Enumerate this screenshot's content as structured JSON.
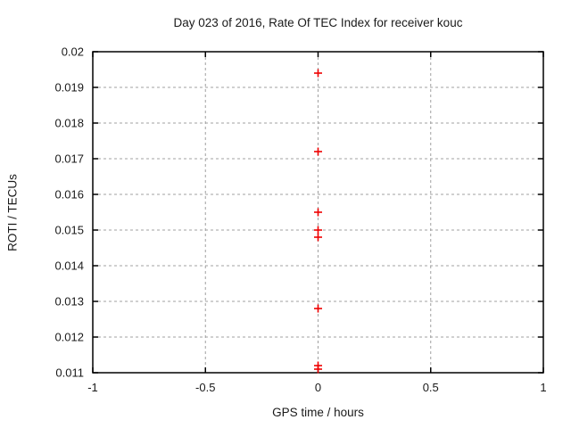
{
  "chart_data": {
    "type": "scatter",
    "title": "Day 023 of 2016, Rate Of TEC Index for receiver kouc",
    "xlabel": "GPS time / hours",
    "ylabel": "ROTI / TECUs",
    "xlim": [
      -1,
      1
    ],
    "ylim": [
      0.011,
      0.02
    ],
    "grid": true,
    "legend": "none",
    "x_ticks": [
      {
        "value": -1,
        "label": "-1"
      },
      {
        "value": -0.5,
        "label": "-0.5"
      },
      {
        "value": 0,
        "label": "0"
      },
      {
        "value": 0.5,
        "label": "0.5"
      },
      {
        "value": 1,
        "label": "1"
      }
    ],
    "y_ticks": [
      {
        "value": 0.011,
        "label": "0.011"
      },
      {
        "value": 0.012,
        "label": "0.012"
      },
      {
        "value": 0.013,
        "label": "0.013"
      },
      {
        "value": 0.014,
        "label": "0.014"
      },
      {
        "value": 0.015,
        "label": "0.015"
      },
      {
        "value": 0.016,
        "label": "0.016"
      },
      {
        "value": 0.017,
        "label": "0.017"
      },
      {
        "value": 0.018,
        "label": "0.018"
      },
      {
        "value": 0.019,
        "label": "0.019"
      },
      {
        "value": 0.02,
        "label": "0.02"
      }
    ],
    "series": [
      {
        "name": "ROTI",
        "marker": "plus",
        "color": "#ee0000",
        "points": [
          {
            "x": 0,
            "y": 0.0194
          },
          {
            "x": 0,
            "y": 0.0172
          },
          {
            "x": 0,
            "y": 0.0155
          },
          {
            "x": 0,
            "y": 0.015
          },
          {
            "x": 0,
            "y": 0.0148
          },
          {
            "x": 0,
            "y": 0.0128
          },
          {
            "x": 0,
            "y": 0.0112
          },
          {
            "x": 0,
            "y": 0.0111
          }
        ]
      }
    ]
  },
  "colors": {
    "background": "#ffffff",
    "axis": "#000000",
    "grid": "#a0a0a0",
    "text": "#1a1a1a",
    "point": "#ee0000"
  }
}
